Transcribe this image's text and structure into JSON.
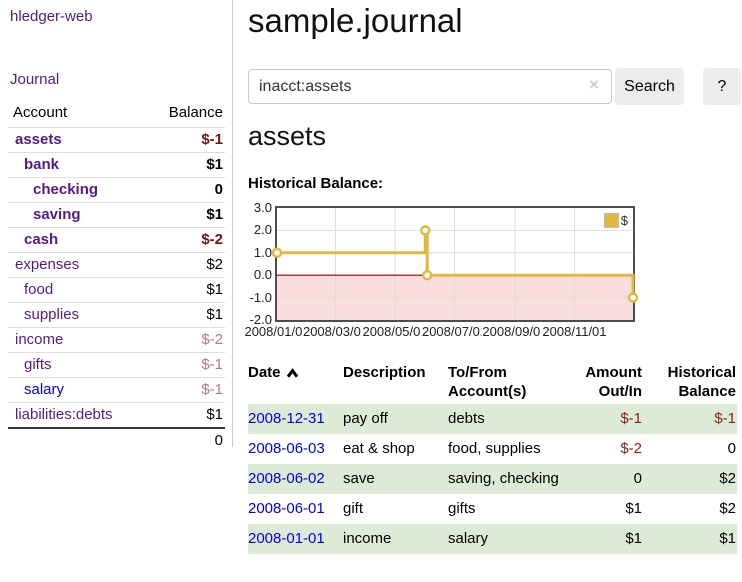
{
  "app": {
    "title": "hledger-web",
    "journal_link": "Journal"
  },
  "sidebar": {
    "header": {
      "account": "Account",
      "balance": "Balance"
    },
    "accounts": [
      {
        "name": "assets",
        "balance": "$-1",
        "indent": 1,
        "bold": true
      },
      {
        "name": "bank",
        "balance": "$1",
        "indent": 2,
        "bold": true
      },
      {
        "name": "checking",
        "balance": "0",
        "indent": 3,
        "bold": true
      },
      {
        "name": "saving",
        "balance": "$1",
        "indent": 3,
        "bold": true
      },
      {
        "name": "cash",
        "balance": "$-2",
        "indent": 2,
        "bold": true
      },
      {
        "name": "expenses",
        "balance": "$2",
        "indent": 1,
        "bold": false
      },
      {
        "name": "food",
        "balance": "$1",
        "indent": 2,
        "bold": false
      },
      {
        "name": "supplies",
        "balance": "$1",
        "indent": 2,
        "bold": false
      },
      {
        "name": "income",
        "balance": "$-2",
        "indent": 1,
        "bold": false
      },
      {
        "name": "gifts",
        "balance": "$-1",
        "indent": 2,
        "bold": false
      },
      {
        "name": "salary",
        "balance": "$-1",
        "indent": 2,
        "bold": false,
        "unvisited": true
      },
      {
        "name": "liabilities:debts",
        "balance": "$1",
        "indent": 1,
        "bold": false
      }
    ],
    "total": "0"
  },
  "main": {
    "title": "sample.journal",
    "account_heading": "assets",
    "chart_label": "Historical Balance:"
  },
  "search": {
    "value": "inacct:assets",
    "clear_icon": "×",
    "button_label": "Search",
    "help_label": "?"
  },
  "chart_data": {
    "type": "line",
    "step": true,
    "title": "Historical Balance:",
    "series": [
      {
        "name": "$",
        "points": [
          {
            "date": "2008-01-01",
            "value": 1
          },
          {
            "date": "2008-06-01",
            "value": 2
          },
          {
            "date": "2008-06-03",
            "value": 0
          },
          {
            "date": "2008-12-31",
            "value": -1
          }
        ]
      }
    ],
    "xrange": [
      "2008-01-01",
      "2008-12-31"
    ],
    "ylim": [
      -2,
      3
    ],
    "yticks": [
      {
        "label": "3.0",
        "value": 3
      },
      {
        "label": "2.0",
        "value": 2
      },
      {
        "label": "1.0",
        "value": 1
      },
      {
        "label": "0.0",
        "value": 0
      },
      {
        "label": "-1.0",
        "value": -1
      },
      {
        "label": "-2.0",
        "value": -2
      }
    ],
    "ygrid": [
      2,
      1,
      -1
    ],
    "xticks": [
      {
        "label": "2008/01/01",
        "date": "2008-01-01"
      },
      {
        "label": "2008/03/01",
        "date": "2008-03-01"
      },
      {
        "label": "2008/05/01",
        "date": "2008-05-01"
      },
      {
        "label": "2008/07/01",
        "date": "2008-07-01"
      },
      {
        "label": "2008/09/01",
        "date": "2008-09-01"
      },
      {
        "label": "2008/11/01",
        "date": "2008-11-01"
      }
    ],
    "legend_position": "top-right",
    "colors": {
      "line": "#e3b840",
      "marker_fill": "#ffffff",
      "negative_region": "#fadddd",
      "zero_line": "#990000",
      "grid": "#dddddd",
      "border": "#4d4d4d"
    }
  },
  "register": {
    "headers": {
      "date": "Date",
      "description": "Description",
      "account": "To/From Account(s)",
      "amount": "Amount Out/In",
      "balance": "Historical Balance"
    },
    "rows": [
      {
        "date": "2008-12-31",
        "description": "pay off",
        "account": "debts",
        "amount": "$-1",
        "balance": "$-1"
      },
      {
        "date": "2008-06-03",
        "description": "eat & shop",
        "account": "food, supplies",
        "amount": "$-2",
        "balance": "0"
      },
      {
        "date": "2008-06-02",
        "description": "save",
        "account": "saving, checking",
        "amount": "0",
        "balance": "$2"
      },
      {
        "date": "2008-06-01",
        "description": "gift",
        "account": "gifts",
        "amount": "$1",
        "balance": "$2"
      },
      {
        "date": "2008-01-01",
        "description": "income",
        "account": "salary",
        "amount": "$1",
        "balance": "$1"
      }
    ]
  }
}
